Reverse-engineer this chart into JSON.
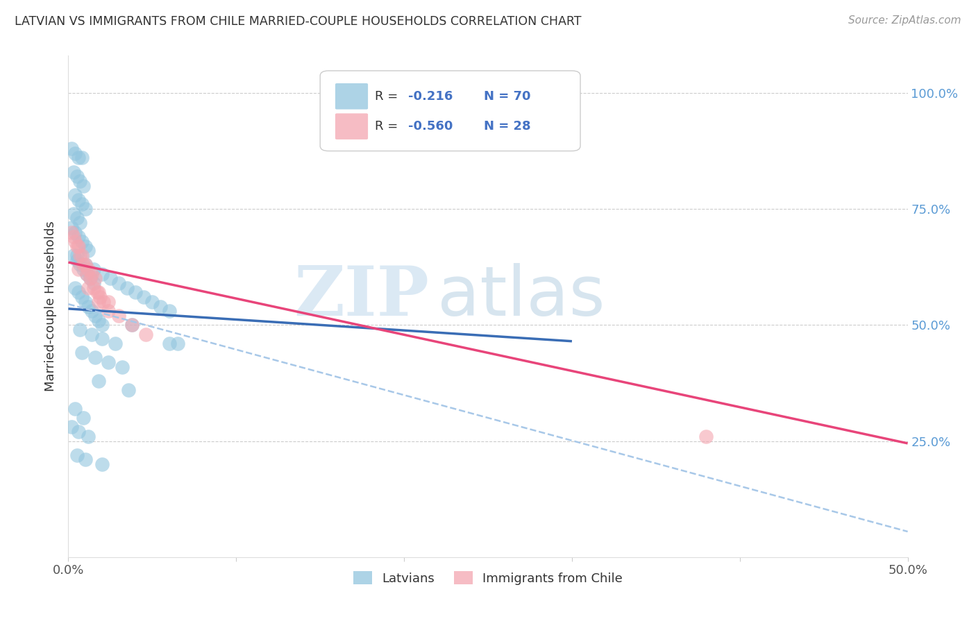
{
  "title": "LATVIAN VS IMMIGRANTS FROM CHILE MARRIED-COUPLE HOUSEHOLDS CORRELATION CHART",
  "source": "Source: ZipAtlas.com",
  "ylabel": "Married-couple Households",
  "xlim": [
    0.0,
    0.5
  ],
  "ylim": [
    0.0,
    1.08
  ],
  "legend_latvians": "Latvians",
  "legend_chile": "Immigrants from Chile",
  "legend_R_latvians_val": "-0.216",
  "legend_N_latvians": "N = 70",
  "legend_R_chile_val": "-0.560",
  "legend_N_chile": "N = 28",
  "blue_color": "#92c5de",
  "pink_color": "#f4a6b0",
  "blue_line_color": "#3a6db5",
  "pink_line_color": "#e8457a",
  "dashed_line_color": "#a8c8e8",
  "watermark_zip": "ZIP",
  "watermark_atlas": "atlas",
  "latvian_x": [
    0.002,
    0.004,
    0.006,
    0.008,
    0.003,
    0.005,
    0.007,
    0.009,
    0.004,
    0.006,
    0.008,
    0.01,
    0.003,
    0.005,
    0.007,
    0.002,
    0.004,
    0.006,
    0.008,
    0.01,
    0.012,
    0.003,
    0.005,
    0.007,
    0.009,
    0.011,
    0.013,
    0.015,
    0.004,
    0.006,
    0.008,
    0.01,
    0.012,
    0.014,
    0.016,
    0.018,
    0.02,
    0.005,
    0.01,
    0.015,
    0.02,
    0.025,
    0.03,
    0.035,
    0.04,
    0.045,
    0.05,
    0.055,
    0.06,
    0.065,
    0.007,
    0.014,
    0.02,
    0.028,
    0.008,
    0.016,
    0.024,
    0.032,
    0.018,
    0.036,
    0.004,
    0.009,
    0.002,
    0.006,
    0.012,
    0.005,
    0.01,
    0.02,
    0.038,
    0.06
  ],
  "latvian_y": [
    0.88,
    0.87,
    0.86,
    0.86,
    0.83,
    0.82,
    0.81,
    0.8,
    0.78,
    0.77,
    0.76,
    0.75,
    0.74,
    0.73,
    0.72,
    0.71,
    0.7,
    0.69,
    0.68,
    0.67,
    0.66,
    0.65,
    0.64,
    0.63,
    0.62,
    0.61,
    0.6,
    0.59,
    0.58,
    0.57,
    0.56,
    0.55,
    0.54,
    0.53,
    0.52,
    0.51,
    0.5,
    0.65,
    0.63,
    0.62,
    0.61,
    0.6,
    0.59,
    0.58,
    0.57,
    0.56,
    0.55,
    0.54,
    0.53,
    0.46,
    0.49,
    0.48,
    0.47,
    0.46,
    0.44,
    0.43,
    0.42,
    0.41,
    0.38,
    0.36,
    0.32,
    0.3,
    0.28,
    0.27,
    0.26,
    0.22,
    0.21,
    0.2,
    0.5,
    0.46
  ],
  "chile_x": [
    0.002,
    0.004,
    0.006,
    0.008,
    0.01,
    0.012,
    0.014,
    0.016,
    0.003,
    0.005,
    0.007,
    0.009,
    0.011,
    0.013,
    0.015,
    0.017,
    0.019,
    0.021,
    0.006,
    0.012,
    0.018,
    0.024,
    0.03,
    0.038,
    0.046,
    0.018,
    0.024,
    0.38
  ],
  "chile_y": [
    0.7,
    0.68,
    0.67,
    0.65,
    0.63,
    0.62,
    0.61,
    0.6,
    0.69,
    0.67,
    0.65,
    0.63,
    0.61,
    0.6,
    0.58,
    0.57,
    0.56,
    0.55,
    0.62,
    0.58,
    0.55,
    0.53,
    0.52,
    0.5,
    0.48,
    0.57,
    0.55,
    0.26
  ],
  "blue_trendline_x": [
    0.0,
    0.3
  ],
  "blue_trendline_y": [
    0.535,
    0.465
  ],
  "pink_trendline_x": [
    0.0,
    0.5
  ],
  "pink_trendline_y": [
    0.635,
    0.245
  ],
  "dashed_trendline_x": [
    0.0,
    0.5
  ],
  "dashed_trendline_y": [
    0.545,
    0.055
  ]
}
